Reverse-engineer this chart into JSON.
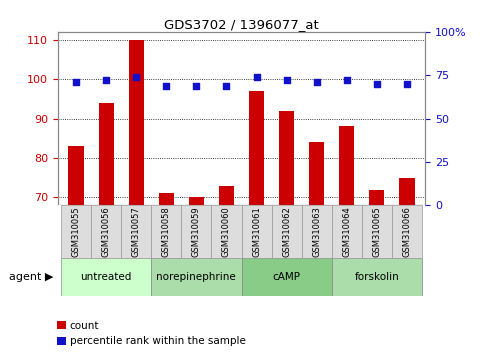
{
  "title": "GDS3702 / 1396077_at",
  "samples": [
    "GSM310055",
    "GSM310056",
    "GSM310057",
    "GSM310058",
    "GSM310059",
    "GSM310060",
    "GSM310061",
    "GSM310062",
    "GSM310063",
    "GSM310064",
    "GSM310065",
    "GSM310066"
  ],
  "counts": [
    83,
    94,
    110,
    71,
    70,
    73,
    97,
    92,
    84,
    88,
    72,
    75
  ],
  "percentiles": [
    71,
    72,
    74,
    69,
    69,
    69,
    74,
    72,
    71,
    72,
    70,
    70
  ],
  "ylim_left": [
    68,
    112
  ],
  "ylim_right": [
    0,
    100
  ],
  "yticks_left": [
    70,
    80,
    90,
    100,
    110
  ],
  "yticks_right": [
    0,
    25,
    50,
    75,
    100
  ],
  "ytick_labels_right": [
    "0",
    "25",
    "50",
    "75",
    "100%"
  ],
  "bar_color": "#cc0000",
  "dot_color": "#1111cc",
  "grid_color": "#000000",
  "agent_groups": [
    {
      "label": "untreated",
      "start": 0,
      "end": 3
    },
    {
      "label": "norepinephrine",
      "start": 3,
      "end": 6
    },
    {
      "label": "cAMP",
      "start": 6,
      "end": 9
    },
    {
      "label": "forskolin",
      "start": 9,
      "end": 12
    }
  ],
  "agent_group_colors": [
    "#ddffdd",
    "#aaeebb",
    "#88dd88",
    "#aaeebb"
  ],
  "agent_label": "agent",
  "legend_count_label": "count",
  "legend_pct_label": "percentile rank within the sample",
  "bar_width": 0.5,
  "bg_color": "#ffffff",
  "tick_label_color_left": "#cc0000",
  "tick_label_color_right": "#1111cc",
  "sample_box_color": "#dddddd",
  "sample_box_edge": "#999999"
}
